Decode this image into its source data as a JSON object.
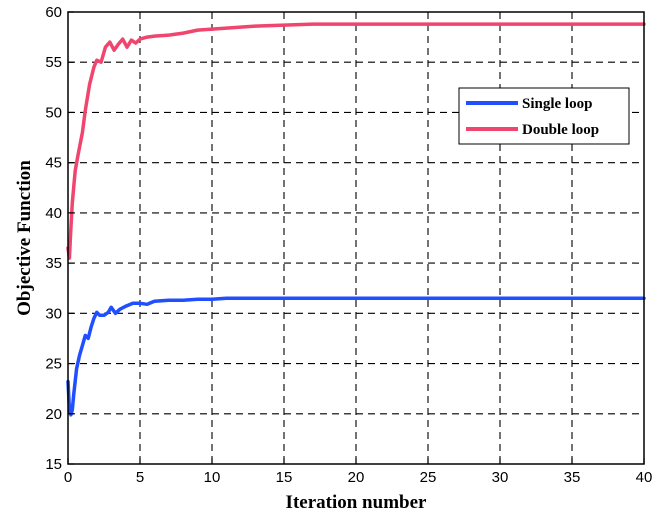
{
  "colors": {
    "single_loop": "#1f4fff",
    "double_loop": "#f0456e"
  },
  "chart_data": {
    "type": "line",
    "title": "",
    "xlabel": "Iteration number",
    "ylabel": "Objective Function",
    "xlim": [
      0,
      40
    ],
    "ylim": [
      15,
      60
    ],
    "xticks": [
      0,
      5,
      10,
      15,
      20,
      25,
      30,
      35,
      40
    ],
    "yticks": [
      15,
      20,
      25,
      30,
      35,
      40,
      45,
      50,
      55,
      60
    ],
    "grid": true,
    "legend_position": "upper-right",
    "series": [
      {
        "name": "Single loop",
        "color": "#1f4fff",
        "x": [
          0,
          0.1,
          0.2,
          0.3,
          0.4,
          0.6,
          0.8,
          1.0,
          1.2,
          1.4,
          1.6,
          1.8,
          2.0,
          2.2,
          2.5,
          2.8,
          3.0,
          3.3,
          3.6,
          4.0,
          4.5,
          5.0,
          5.5,
          6.0,
          7.0,
          8.0,
          9.0,
          10.0,
          11.0,
          12.0,
          14.0,
          16.0,
          20.0,
          25.0,
          30.0,
          35.0,
          40.0
        ],
        "y": [
          23.2,
          20.5,
          19.9,
          20.4,
          22.0,
          24.5,
          25.8,
          26.8,
          27.8,
          27.5,
          28.6,
          29.5,
          30.1,
          29.8,
          29.8,
          30.1,
          30.6,
          30.0,
          30.4,
          30.7,
          31.0,
          31.0,
          30.9,
          31.2,
          31.3,
          31.3,
          31.4,
          31.4,
          31.5,
          31.5,
          31.5,
          31.5,
          31.5,
          31.5,
          31.5,
          31.5,
          31.5
        ]
      },
      {
        "name": "Double loop",
        "color": "#f0456e",
        "x": [
          0,
          0.1,
          0.2,
          0.3,
          0.5,
          0.7,
          1.0,
          1.2,
          1.5,
          1.8,
          2.0,
          2.3,
          2.6,
          2.9,
          3.2,
          3.5,
          3.8,
          4.1,
          4.4,
          4.7,
          5.0,
          5.5,
          6.0,
          7.0,
          8.0,
          9.0,
          10.0,
          11.0,
          12.0,
          13.0,
          15.0,
          17.0,
          20.0,
          25.0,
          30.0,
          35.0,
          40.0
        ],
        "y": [
          36.5,
          35.5,
          38.5,
          41.0,
          44.2,
          45.8,
          48.0,
          50.2,
          52.8,
          54.5,
          55.2,
          55.0,
          56.5,
          57.0,
          56.2,
          56.8,
          57.3,
          56.5,
          57.2,
          56.9,
          57.3,
          57.5,
          57.6,
          57.7,
          57.9,
          58.2,
          58.3,
          58.4,
          58.5,
          58.6,
          58.7,
          58.8,
          58.8,
          58.8,
          58.8,
          58.8,
          58.8
        ]
      }
    ]
  }
}
